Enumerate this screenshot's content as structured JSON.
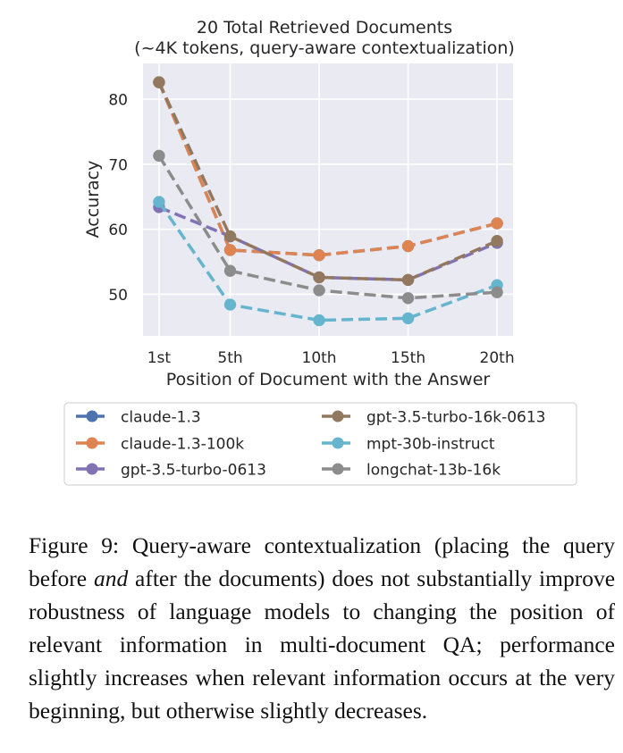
{
  "chart_data": {
    "type": "line",
    "title": "20 Total Retrieved Documents",
    "subtitle": "(~4K tokens, query-aware contextualization)",
    "xlabel": "Position of Document with the Answer",
    "ylabel": "Accuracy",
    "categories": [
      "1st",
      "5th",
      "10th",
      "15th",
      "20th"
    ],
    "x": [
      1,
      5,
      10,
      15,
      20
    ],
    "xlim": [
      0.1,
      20.9
    ],
    "ylim": [
      43.6,
      85.5
    ],
    "yticks": [
      50,
      60,
      70,
      80
    ],
    "grid": true,
    "legend_position": "bottom",
    "series": [
      {
        "name": "claude-1.3",
        "color": "#4c72b0",
        "values": [
          82.6,
          56.8,
          56.0,
          57.4,
          60.9
        ]
      },
      {
        "name": "claude-1.3-100k",
        "color": "#dd8452",
        "values": [
          82.6,
          56.8,
          56.0,
          57.4,
          60.9
        ]
      },
      {
        "name": "gpt-3.5-turbo-0613",
        "color": "#8172b3",
        "values": [
          63.4,
          58.9,
          52.6,
          52.2,
          57.9
        ]
      },
      {
        "name": "gpt-3.5-turbo-16k-0613",
        "color": "#937860",
        "values": [
          82.6,
          58.9,
          52.6,
          52.2,
          58.2
        ]
      },
      {
        "name": "mpt-30b-instruct",
        "color": "#64b5cd",
        "values": [
          64.2,
          48.4,
          46.0,
          46.3,
          51.4
        ]
      },
      {
        "name": "longchat-13b-16k",
        "color": "#8c8c8c",
        "values": [
          71.3,
          53.6,
          50.6,
          49.4,
          50.3
        ]
      }
    ]
  },
  "caption": {
    "label": "Figure 9:",
    "part1": "Query-aware contextualization (placing the query before",
    "italic": "and",
    "part2": "after the documents) does not substantially improve robustness of language models to changing the position of relevant information in multi-document QA; performance slightly increases when relevant information occurs at the very beginning, but otherwise slightly decreases."
  }
}
